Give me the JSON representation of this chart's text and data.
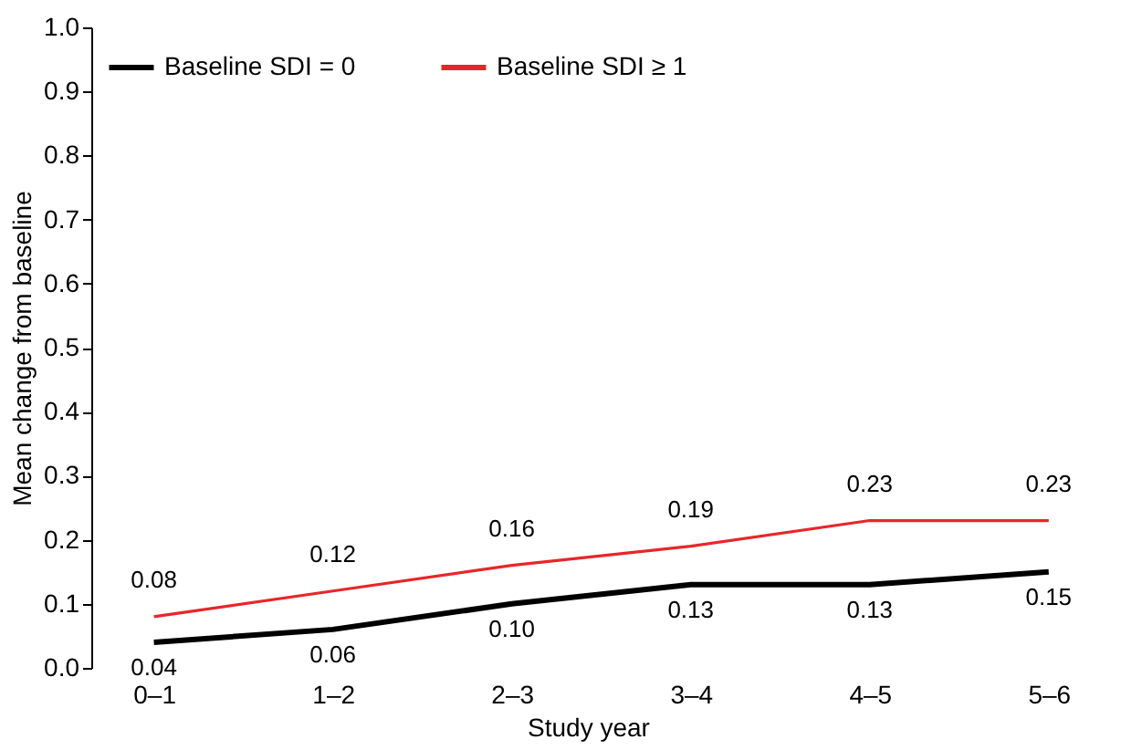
{
  "chart_data": {
    "type": "line",
    "xlabel": "Study year",
    "ylabel": "Mean change from baseline",
    "categories": [
      "0–1",
      "1–2",
      "2–3",
      "3–4",
      "4–5",
      "5–6"
    ],
    "series": [
      {
        "name": "Baseline SDI = 0",
        "color": "#000000",
        "values": [
          0.04,
          0.06,
          0.1,
          0.13,
          0.13,
          0.15
        ],
        "value_labels": [
          "0.04",
          "0.06",
          "0.10",
          "0.13",
          "0.13",
          "0.15"
        ]
      },
      {
        "name": "Baseline SDI ≥ 1",
        "color": "#e8262a",
        "values": [
          0.08,
          0.12,
          0.16,
          0.19,
          0.23,
          0.23
        ],
        "value_labels": [
          "0.08",
          "0.12",
          "0.16",
          "0.19",
          "0.23",
          "0.23"
        ]
      }
    ],
    "ylim": [
      0,
      1
    ],
    "yticks": [
      {
        "value": 0,
        "label": "0.0"
      },
      0.1,
      0.2,
      0.3,
      0.4,
      0.5,
      0.6,
      0.7,
      0.8,
      0.9,
      {
        "value": 1,
        "label": "1.0"
      }
    ],
    "legend": "top left",
    "grid": false,
    "marker": "none",
    "line_style": "solid"
  }
}
